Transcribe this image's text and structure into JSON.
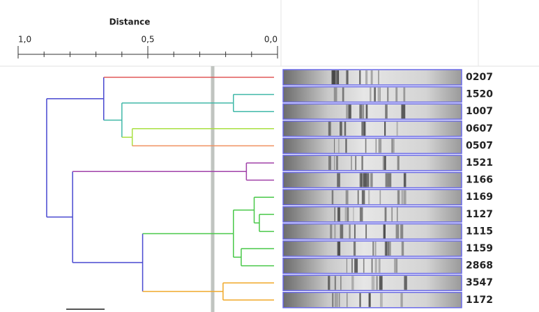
{
  "chart_data": {
    "type": "dendrogram",
    "x_label": "Distance",
    "xlim": [
      1.0,
      0.0
    ],
    "xticks": [
      {
        "value": 1.0,
        "label": "1,0"
      },
      {
        "value": 0.5,
        "label": "0,5"
      },
      {
        "value": 0.0,
        "label": "0,0"
      }
    ],
    "xminor_ticks": [
      0.9,
      0.8,
      0.7,
      0.6,
      0.4,
      0.3,
      0.2,
      0.1
    ],
    "cutoff": 0.25,
    "cutoff_color": "#c0c4c0",
    "lane_border_color": "#6a6ae8",
    "tree": {
      "distance": 0.89,
      "color": "#4848d0",
      "children": [
        {
          "distance": 0.67,
          "color": "#4848d0",
          "children": [
            {
              "label": "0207",
              "color": "#e05858"
            },
            {
              "distance": 0.6,
              "color": "#40b8a8",
              "children": [
                {
                  "distance": 0.17,
                  "color": "#40b8a8",
                  "children": [
                    {
                      "label": "1520",
                      "color": "#40b8a8"
                    },
                    {
                      "label": "1007",
                      "color": "#40b8a8"
                    }
                  ]
                },
                {
                  "distance": 0.56,
                  "color": "#a8e040",
                  "children": [
                    {
                      "label": "0607",
                      "color": "#a8e040"
                    },
                    {
                      "label": "0507",
                      "color": "#f09060"
                    }
                  ]
                }
              ]
            }
          ]
        },
        {
          "distance": 0.79,
          "color": "#4848d0",
          "children": [
            {
              "distance": 0.12,
              "color": "#a040a8",
              "children": [
                {
                  "label": "1521",
                  "color": "#a040a8"
                },
                {
                  "label": "1166",
                  "color": "#a040a8"
                }
              ]
            },
            {
              "distance": 0.52,
              "color": "#4848d0",
              "children": [
                {
                  "distance": 0.17,
                  "color": "#48c848",
                  "children": [
                    {
                      "distance": 0.09,
                      "color": "#48c848",
                      "children": [
                        {
                          "label": "1169",
                          "color": "#48c848"
                        },
                        {
                          "distance": 0.07,
                          "color": "#48c848",
                          "children": [
                            {
                              "label": "1127",
                              "color": "#48c848"
                            },
                            {
                              "label": "1115",
                              "color": "#48c848"
                            }
                          ]
                        }
                      ]
                    },
                    {
                      "distance": 0.14,
                      "color": "#48c848",
                      "children": [
                        {
                          "label": "1159",
                          "color": "#48c848"
                        },
                        {
                          "label": "2868",
                          "color": "#48c848"
                        }
                      ]
                    }
                  ]
                },
                {
                  "distance": 0.21,
                  "color": "#f0a828",
                  "children": [
                    {
                      "label": "3547",
                      "color": "#f0a828"
                    },
                    {
                      "label": "1172",
                      "color": "#f0a828"
                    }
                  ]
                }
              ]
            }
          ]
        }
      ]
    }
  }
}
